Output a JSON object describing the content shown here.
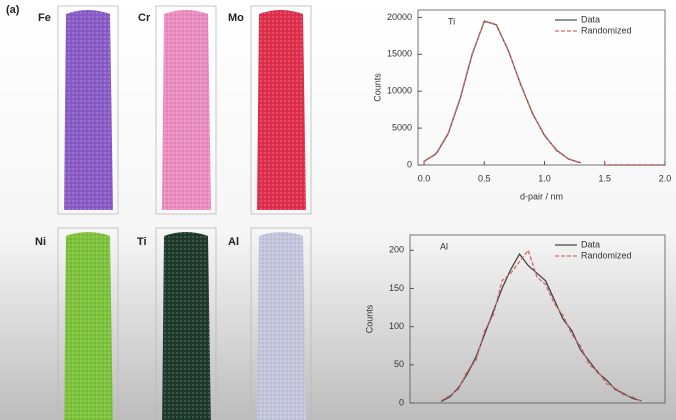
{
  "panel_a": {
    "label": "(a)",
    "elements": [
      {
        "symbol": "Fe",
        "color": "#8a5cc8"
      },
      {
        "symbol": "Cr",
        "color": "#ec8cc0"
      },
      {
        "symbol": "Mo",
        "color": "#e0304e"
      },
      {
        "symbol": "Ni",
        "color": "#7cc23a"
      },
      {
        "symbol": "Ti",
        "color": "#1e3a2c"
      },
      {
        "symbol": "Al",
        "color": "#c4c6de"
      }
    ]
  },
  "chart_data": [
    {
      "type": "line",
      "title": "Ti",
      "x_label": "d-pair / nm",
      "y_label": "Counts",
      "x": [
        0.0,
        0.1,
        0.2,
        0.3,
        0.4,
        0.5,
        0.6,
        0.7,
        0.8,
        0.9,
        1.0,
        1.1,
        1.2,
        1.3,
        1.4,
        1.5,
        1.6,
        1.7,
        1.8,
        1.9,
        2.0
      ],
      "series": [
        {
          "name": "Data",
          "color": "#555555",
          "style": "solid",
          "values": [
            500,
            1500,
            4200,
            9000,
            15000,
            19500,
            19000,
            15500,
            11000,
            7000,
            4000,
            2000,
            800,
            300,
            null,
            0,
            0,
            0,
            0,
            0,
            0
          ]
        },
        {
          "name": "Randomized",
          "color": "#d06a6a",
          "style": "dashed",
          "values": [
            450,
            1600,
            4300,
            9100,
            15100,
            19400,
            19100,
            15400,
            11100,
            6900,
            4100,
            1900,
            850,
            250,
            null,
            0,
            0,
            0,
            0,
            0,
            0
          ]
        }
      ],
      "xlim": [
        -0.05,
        2.0
      ],
      "xticks": [
        {
          "value": 0,
          "label": "0.0"
        },
        {
          "value": 0.5,
          "label": "0.5"
        },
        {
          "value": 1,
          "label": "1.0"
        },
        {
          "value": 1.5,
          "label": "1.5"
        },
        {
          "value": 2,
          "label": "2.0"
        }
      ],
      "ylim": [
        0,
        21000
      ],
      "yticks": [
        0,
        5000,
        10000,
        15000,
        20000
      ],
      "legend": "top-right"
    },
    {
      "type": "line",
      "title": "Al",
      "y_label": "Counts",
      "x": [
        0.2,
        0.27,
        0.34,
        0.41,
        0.48,
        0.55,
        0.62,
        0.69,
        0.76,
        0.83,
        0.9,
        0.97,
        1.04,
        1.11,
        1.18,
        1.25,
        1.32,
        1.39,
        1.46,
        1.53,
        1.6,
        1.67,
        1.74,
        1.81
      ],
      "series": [
        {
          "name": "Data",
          "color": "#444444",
          "style": "solid",
          "values": [
            2,
            8,
            20,
            38,
            60,
            90,
            120,
            150,
            175,
            195,
            180,
            170,
            160,
            135,
            110,
            95,
            70,
            55,
            40,
            30,
            18,
            12,
            6,
            3
          ]
        },
        {
          "name": "Randomized",
          "color": "#d06a6a",
          "style": "dashed",
          "values": [
            3,
            10,
            18,
            42,
            55,
            95,
            115,
            160,
            170,
            185,
            200,
            165,
            155,
            130,
            115,
            90,
            75,
            50,
            42,
            25,
            20,
            10,
            8,
            2
          ]
        }
      ],
      "xlim": [
        -0.05,
        2.0
      ],
      "ylim": [
        0,
        220
      ],
      "yticks": [
        0,
        50,
        100,
        150,
        200
      ],
      "legend": "top-right"
    }
  ]
}
